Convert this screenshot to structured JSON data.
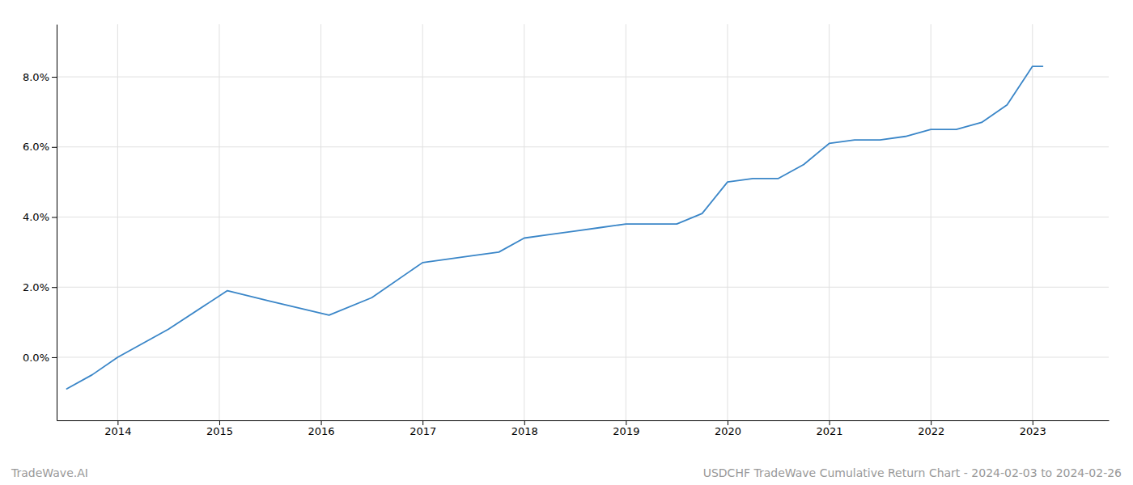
{
  "chart_data": {
    "type": "line",
    "title": "USDCHF TradeWave Cumulative Return Chart - 2024-02-03 to 2024-02-26",
    "annotations": [
      "TradeWave.AI"
    ],
    "x": [
      2013.5,
      2013.75,
      2014.0,
      2014.5,
      2015.08,
      2015.5,
      2016.08,
      2016.5,
      2017.0,
      2017.5,
      2017.75,
      2018.0,
      2018.25,
      2018.5,
      2018.75,
      2019.0,
      2019.25,
      2019.5,
      2019.75,
      2020.0,
      2020.25,
      2020.5,
      2020.75,
      2021.0,
      2021.25,
      2021.5,
      2021.75,
      2022.0,
      2022.25,
      2022.5,
      2022.75,
      2023.0,
      2023.1
    ],
    "values": [
      -0.009,
      -0.005,
      0.0,
      0.008,
      0.019,
      0.016,
      0.012,
      0.017,
      0.027,
      0.029,
      0.03,
      0.034,
      0.035,
      0.036,
      0.037,
      0.038,
      0.038,
      0.038,
      0.041,
      0.05,
      0.051,
      0.051,
      0.055,
      0.061,
      0.062,
      0.062,
      0.063,
      0.065,
      0.065,
      0.067,
      0.072,
      0.083,
      0.083
    ],
    "color": "#3a86c8",
    "xlim": [
      2013.4,
      2023.75
    ],
    "ylim": [
      -0.018,
      0.095
    ],
    "xticks": [
      2014,
      2015,
      2016,
      2017,
      2018,
      2019,
      2020,
      2021,
      2022,
      2023
    ],
    "yticks": [
      {
        "value": 0.0,
        "label": "0.0%"
      },
      {
        "value": 0.02,
        "label": "2.0%"
      },
      {
        "value": 0.04,
        "label": "4.0%"
      },
      {
        "value": 0.06,
        "label": "6.0%"
      },
      {
        "value": 0.08,
        "label": "8.0%"
      }
    ],
    "grid": true
  }
}
